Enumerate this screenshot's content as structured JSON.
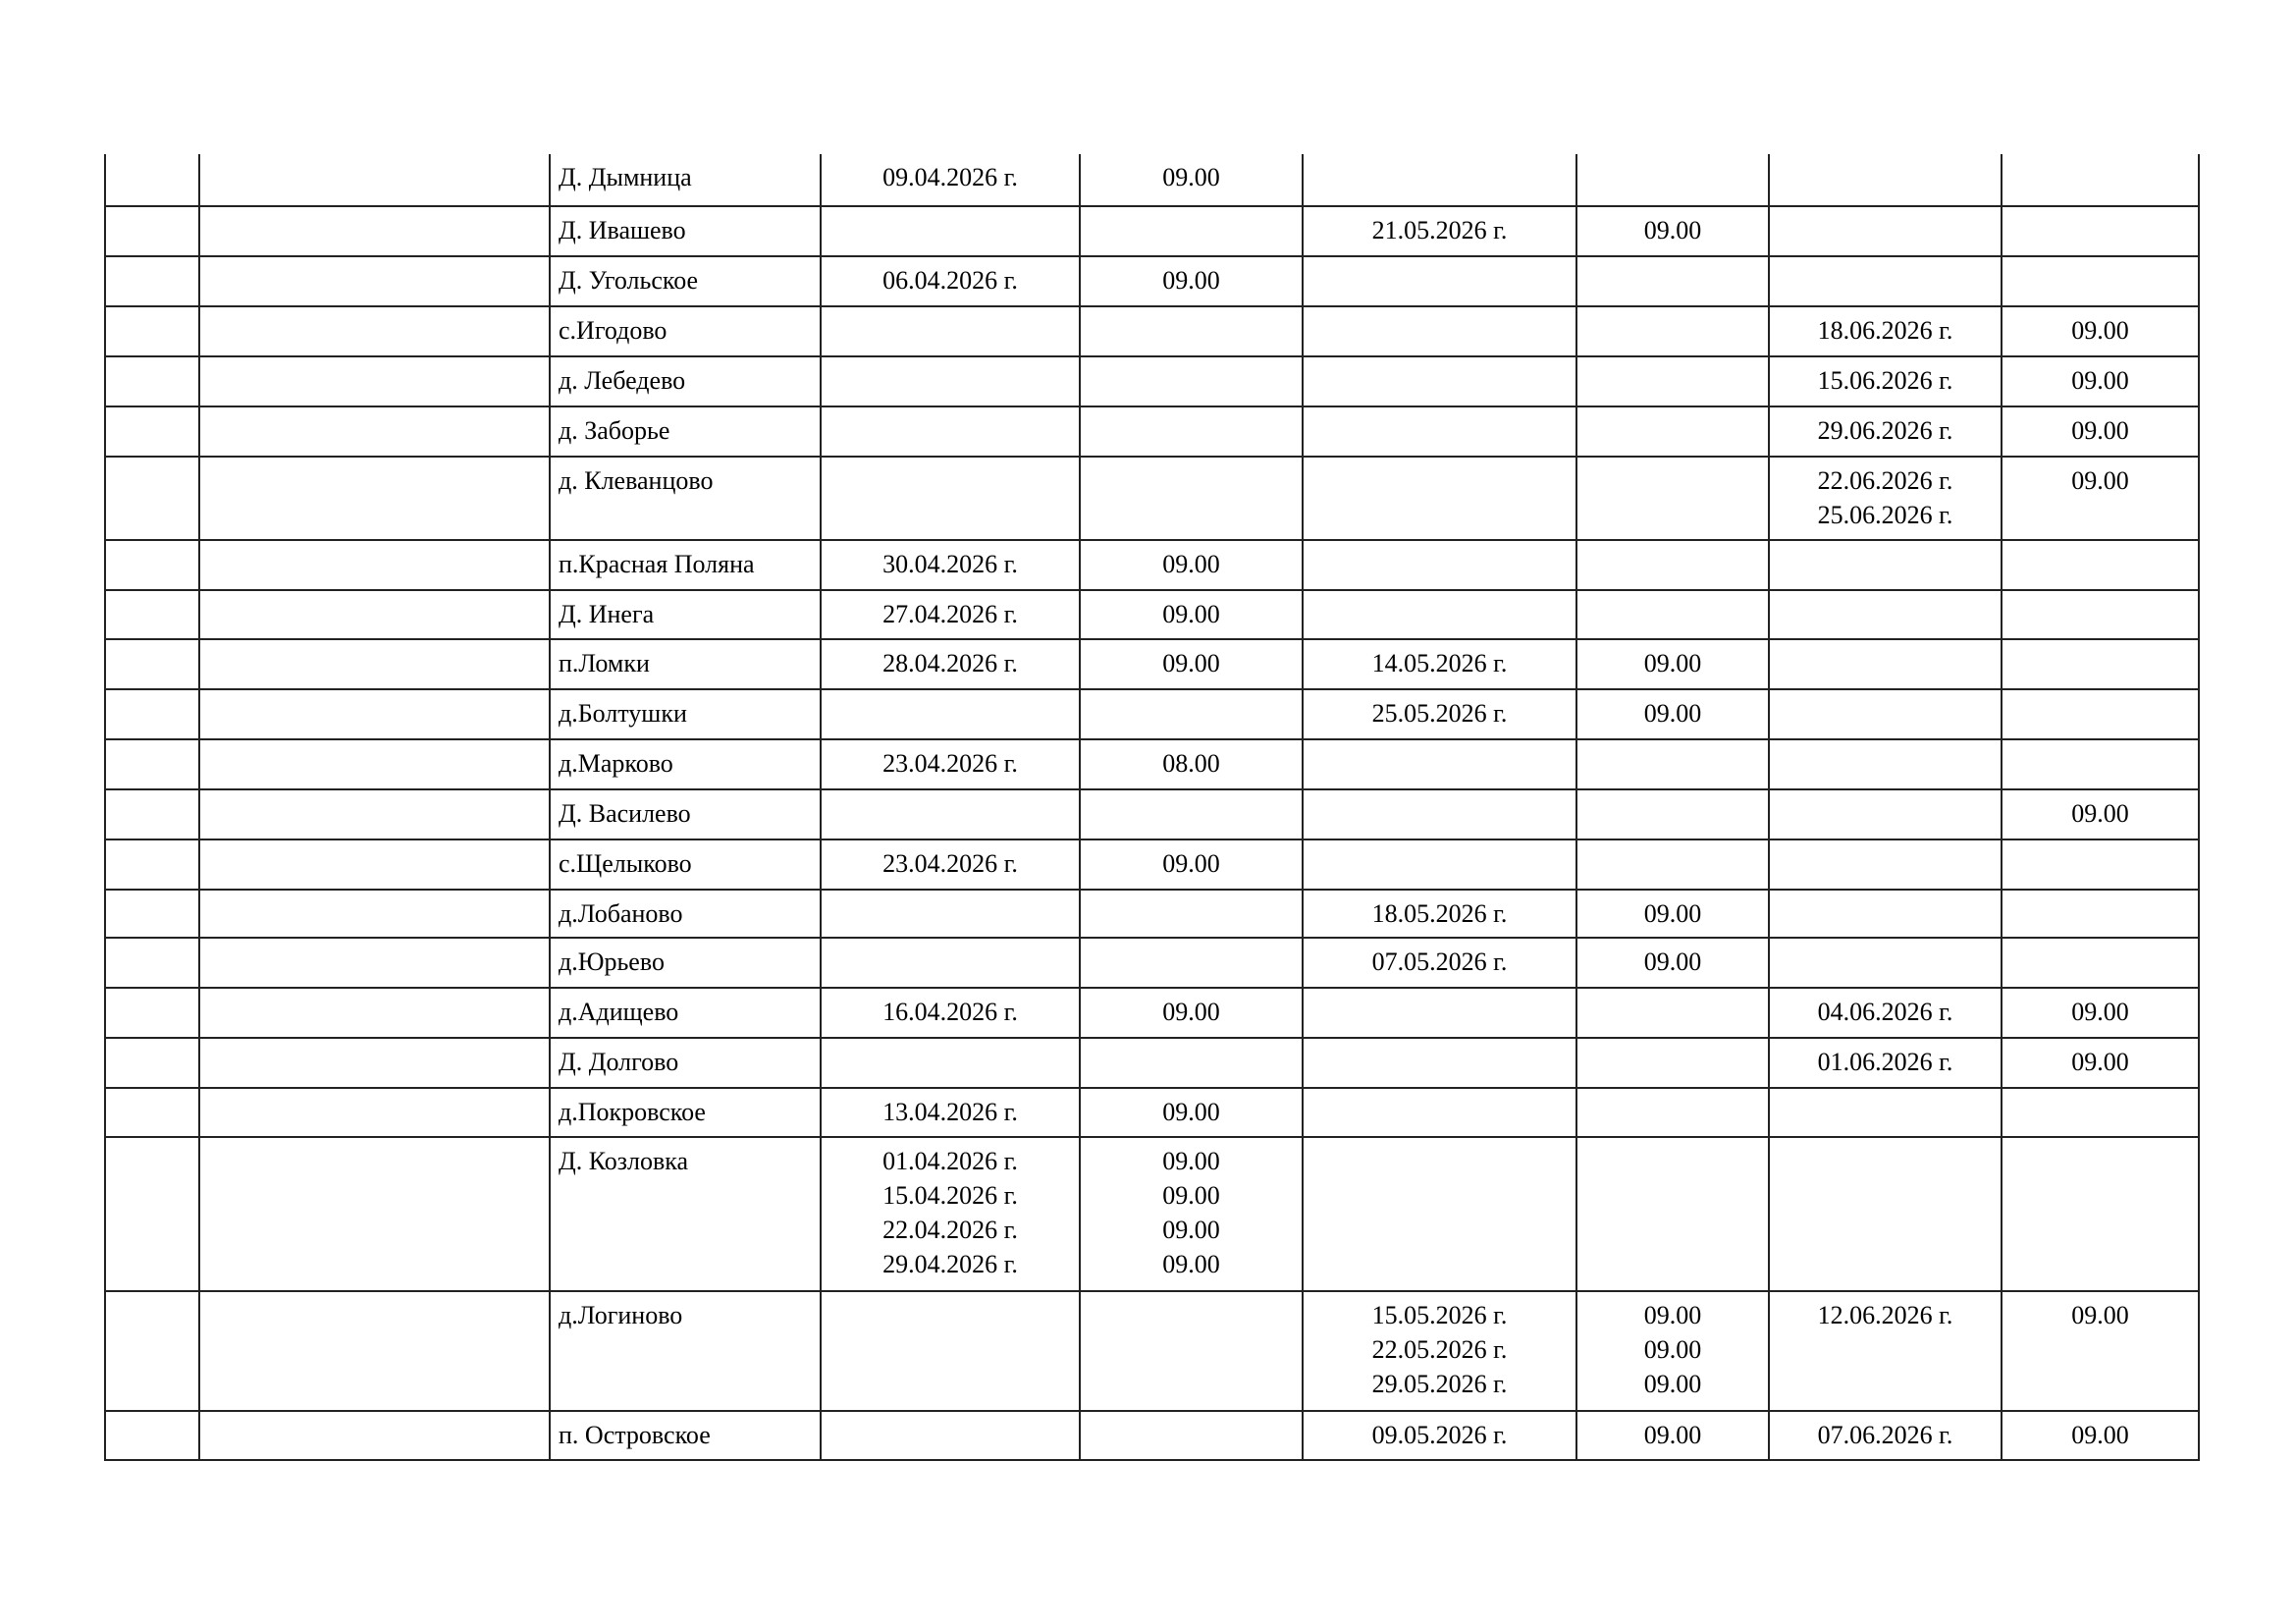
{
  "schedule": {
    "rows": [
      {
        "place": "Д. Дымница",
        "d1": "09.04.2026 г.",
        "t1": "09.00",
        "d2": "",
        "t2": "",
        "d3": "",
        "t3": ""
      },
      {
        "place": "Д. Ивашево",
        "d1": "",
        "t1": "",
        "d2": "21.05.2026 г.",
        "t2": "09.00",
        "d3": "",
        "t3": ""
      },
      {
        "place": "Д. Угольское",
        "d1": "06.04.2026 г.",
        "t1": "09.00",
        "d2": "",
        "t2": "",
        "d3": "",
        "t3": ""
      },
      {
        "place": "с.Игодово",
        "d1": "",
        "t1": "",
        "d2": "",
        "t2": "",
        "d3": "18.06.2026 г.",
        "t3": "09.00"
      },
      {
        "place": "д. Лебедево",
        "d1": "",
        "t1": "",
        "d2": "",
        "t2": "",
        "d3": "15.06.2026 г.",
        "t3": "09.00"
      },
      {
        "place": "д. Заборье",
        "d1": "",
        "t1": "",
        "d2": "",
        "t2": "",
        "d3": "29.06.2026 г.",
        "t3": "09.00"
      },
      {
        "place": "д. Клеванцово",
        "d1": "",
        "t1": "",
        "d2": "",
        "t2": "",
        "d3": "22.06.2026 г.\n25.06.2026 г.",
        "t3": "09.00"
      },
      {
        "place": "п.Красная Поляна",
        "d1": "30.04.2026 г.",
        "t1": "09.00",
        "d2": "",
        "t2": "",
        "d3": "",
        "t3": ""
      },
      {
        "place": "Д. Инега",
        "d1": "27.04.2026 г.",
        "t1": "09.00",
        "d2": "",
        "t2": "",
        "d3": "",
        "t3": ""
      },
      {
        "place": "п.Ломки",
        "d1": "28.04.2026 г.",
        "t1": "09.00",
        "d2": "14.05.2026 г.",
        "t2": "09.00",
        "d3": "",
        "t3": ""
      },
      {
        "place": "д.Болтушки",
        "d1": "",
        "t1": "",
        "d2": "25.05.2026 г.",
        "t2": "09.00",
        "d3": "",
        "t3": ""
      },
      {
        "place": "д.Марково",
        "d1": "23.04.2026 г.",
        "t1": "08.00",
        "d2": "",
        "t2": "",
        "d3": "",
        "t3": ""
      },
      {
        "place": "Д. Василево",
        "d1": "",
        "t1": "",
        "d2": "",
        "t2": "",
        "d3": "",
        "t3": "09.00"
      },
      {
        "place": "с.Щелыково",
        "d1": "23.04.2026 г.",
        "t1": "09.00",
        "d2": "",
        "t2": "",
        "d3": "",
        "t3": ""
      },
      {
        "place": "д.Лобаново",
        "d1": "",
        "t1": "",
        "d2": "18.05.2026 г.",
        "t2": "09.00",
        "d3": "",
        "t3": ""
      },
      {
        "place": "д.Юрьево",
        "d1": "",
        "t1": "",
        "d2": "07.05.2026 г.",
        "t2": "09.00",
        "d3": "",
        "t3": ""
      },
      {
        "place": "д.Адищево",
        "d1": "16.04.2026 г.",
        "t1": "09.00",
        "d2": "",
        "t2": "",
        "d3": "04.06.2026 г.",
        "t3": "09.00"
      },
      {
        "place": "Д. Долгово",
        "d1": "",
        "t1": "",
        "d2": "",
        "t2": "",
        "d3": "01.06.2026 г.",
        "t3": "09.00"
      },
      {
        "place": "д.Покровское",
        "d1": "13.04.2026 г.",
        "t1": "09.00",
        "d2": "",
        "t2": "",
        "d3": "",
        "t3": ""
      },
      {
        "place": "Д. Козловка",
        "d1": "01.04.2026 г.\n15.04.2026 г.\n22.04.2026 г.\n29.04.2026 г.",
        "t1": "09.00\n09.00\n09.00\n09.00",
        "d2": "",
        "t2": "",
        "d3": "",
        "t3": ""
      },
      {
        "place": "д.Логиново",
        "d1": "",
        "t1": "",
        "d2": "15.05.2026 г.\n22.05.2026 г.\n29.05.2026 г.",
        "t2": "09.00\n09.00\n09.00",
        "d3": "12.06.2026 г.",
        "t3": "09.00"
      },
      {
        "place": "п. Островское",
        "d1": "",
        "t1": "",
        "d2": "09.05.2026 г.",
        "t2": "09.00",
        "d3": "07.06.2026 г.",
        "t3": "09.00"
      }
    ]
  }
}
